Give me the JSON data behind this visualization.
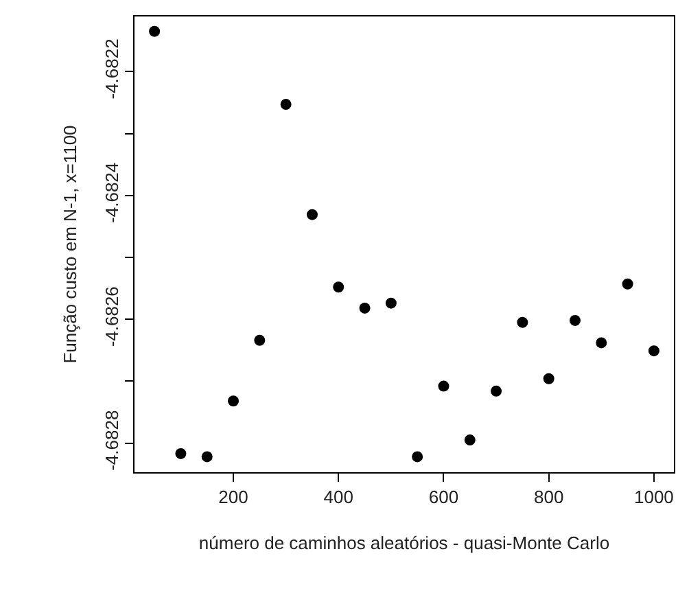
{
  "chart_data": {
    "type": "scatter",
    "xlabel": "número de caminhos aleatórios - quasi-Monte Carlo",
    "ylabel": "Função custo em N-1, x=1100",
    "x": [
      50,
      100,
      150,
      200,
      250,
      300,
      350,
      400,
      450,
      500,
      550,
      600,
      650,
      700,
      750,
      800,
      850,
      900,
      950,
      1000
    ],
    "series": [
      {
        "color": "#000000",
        "values": [
          -4.682135,
          -4.682817,
          -4.682822,
          -4.682732,
          -4.682634,
          -4.682253,
          -4.682431,
          -4.682548,
          -4.682582,
          -4.682574,
          -4.682822,
          -4.682708,
          -4.682795,
          -4.682716,
          -4.682605,
          -4.682696,
          -4.682602,
          -4.682638,
          -4.682543,
          -4.682651
        ]
      }
    ],
    "xlim": [
      12,
      1038
    ],
    "xticks": [
      200,
      400,
      600,
      800,
      1000
    ],
    "ylim": [
      -4.682847,
      -4.682111
    ],
    "yticks": [
      -4.6822,
      {
        "value": -4.6823,
        "label": null
      },
      -4.6824,
      {
        "value": -4.6825,
        "label": null
      },
      -4.6826,
      {
        "value": -4.6827,
        "label": null
      },
      -4.6828
    ],
    "marker": "circle"
  }
}
